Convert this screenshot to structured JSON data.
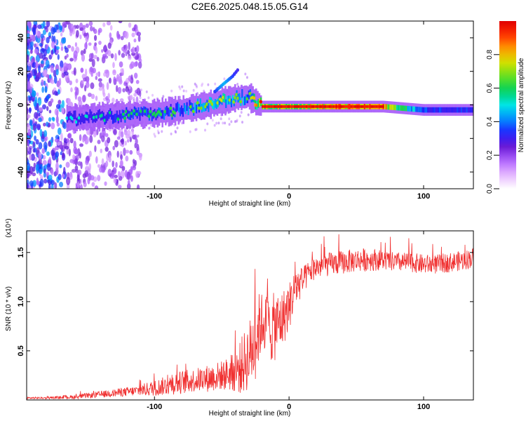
{
  "title": "C2E6.2025.048.15.05.G14",
  "colors": {
    "snr_line": "#f03030",
    "axes": "#000000",
    "background": "#ffffff"
  },
  "colormap": [
    "#ffffff",
    "#e6b8ff",
    "#b266ff",
    "#6a1bd6",
    "#2020ff",
    "#0090ff",
    "#00e5e5",
    "#00d060",
    "#60e020",
    "#d0e000",
    "#ffa000",
    "#ff3000",
    "#e00000"
  ],
  "chart_data": [
    {
      "id": "spectrogram",
      "type": "heatmap",
      "xlabel": "Height of straight line (km)",
      "ylabel": "Frequency (Hz)",
      "xlim": [
        -195,
        137
      ],
      "ylim": [
        -50,
        50
      ],
      "xticks": [
        -100,
        0,
        100
      ],
      "xtick_labels": [
        "-100",
        "0",
        "100"
      ],
      "yticks": [
        -40,
        -20,
        0,
        20,
        40
      ],
      "ytick_labels": [
        "-40",
        "-20",
        "0",
        "20",
        "40"
      ],
      "grid": false,
      "colorbar": {
        "label": "Normalized spectral amplitude",
        "range": [
          0.0,
          1.0
        ],
        "ticks": [
          0.0,
          0.2,
          0.4,
          0.6,
          0.8
        ],
        "tick_labels": [
          "0.0",
          "0.2",
          "0.4",
          "0.6",
          "0.8"
        ],
        "position": "right"
      },
      "ridge": {
        "description_points_x": [
          -195,
          -160,
          -140,
          -120,
          -100,
          -80,
          -60,
          -50,
          -40,
          -30,
          -20,
          -10,
          0,
          20,
          40,
          70,
          100,
          137
        ],
        "center_hz": [
          -8,
          -8,
          -7,
          -6,
          -5,
          -3,
          0,
          2,
          4,
          5,
          -1,
          -1,
          -1,
          -1,
          -1,
          -1,
          -3,
          -3
        ],
        "amplitude": [
          0.3,
          0.35,
          0.4,
          0.45,
          0.45,
          0.5,
          0.55,
          0.6,
          0.55,
          0.5,
          0.85,
          0.8,
          0.85,
          0.9,
          0.95,
          0.95,
          0.45,
          0.45
        ]
      },
      "branch": {
        "x": [
          -55,
          -48,
          -42,
          -38
        ],
        "center_hz": [
          8,
          13,
          17,
          21
        ],
        "amplitude": [
          0.35,
          0.45,
          0.35,
          0.3
        ]
      }
    },
    {
      "id": "snr",
      "type": "line",
      "xlabel": "Height of straight line (km)",
      "ylabel": "SNR (10 * v/v)",
      "y_multiplier": "(x10⁴)",
      "xlim": [
        -195,
        137
      ],
      "ylim": [
        0,
        1.72
      ],
      "xticks": [
        -100,
        0,
        100
      ],
      "xtick_labels": [
        "-100",
        "0",
        "100"
      ],
      "yticks": [
        0.5,
        1.0,
        1.5
      ],
      "ytick_labels": [
        "0.5",
        "1.0",
        "1.5"
      ],
      "grid": false,
      "series": [
        {
          "x": [
            -195,
            -180,
            -160,
            -145,
            -130,
            -115,
            -100,
            -90,
            -80,
            -70,
            -60,
            -50,
            -40,
            -35,
            -30,
            -25,
            -22,
            -20,
            -17,
            -14,
            -10,
            -5,
            0,
            5,
            10,
            15,
            20,
            30,
            40,
            50,
            60,
            70,
            80,
            90,
            100,
            110,
            120,
            130,
            137
          ],
          "values": [
            0.02,
            0.02,
            0.03,
            0.05,
            0.07,
            0.09,
            0.12,
            0.15,
            0.18,
            0.2,
            0.22,
            0.25,
            0.28,
            0.35,
            0.45,
            0.6,
            0.75,
            0.8,
            0.78,
            0.72,
            0.75,
            0.82,
            0.95,
            1.15,
            1.2,
            1.3,
            1.35,
            1.38,
            1.4,
            1.42,
            1.43,
            1.42,
            1.4,
            1.4,
            1.38,
            1.38,
            1.4,
            1.42,
            1.45
          ],
          "noise": [
            0.01,
            0.01,
            0.02,
            0.03,
            0.04,
            0.05,
            0.08,
            0.1,
            0.12,
            0.12,
            0.14,
            0.15,
            0.2,
            0.3,
            0.35,
            0.4,
            0.35,
            0.3,
            0.3,
            0.35,
            0.35,
            0.3,
            0.25,
            0.2,
            0.15,
            0.12,
            0.12,
            0.12,
            0.12,
            0.12,
            0.12,
            0.1,
            0.1,
            0.1,
            0.1,
            0.1,
            0.1,
            0.1,
            0.1
          ]
        }
      ]
    }
  ]
}
